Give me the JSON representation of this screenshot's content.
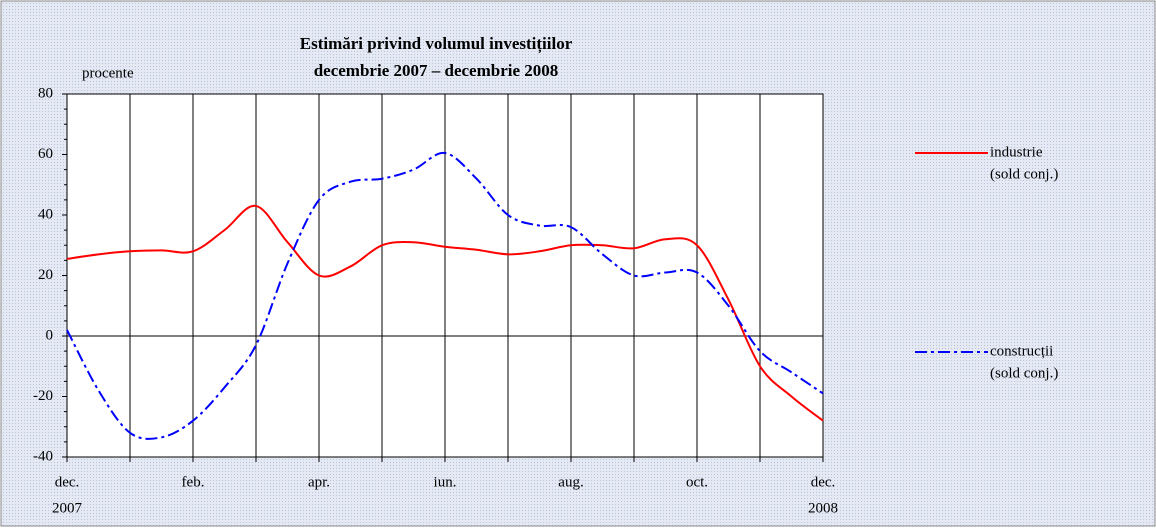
{
  "chart_data": {
    "type": "line",
    "title": "Estimări privind volumul investițiilor",
    "subtitle": "decembrie 2007 – decembrie 2008",
    "ylabel": "procente",
    "x": [
      0,
      0.5,
      1,
      1.5,
      2,
      2.5,
      3,
      3.5,
      4,
      4.5,
      5,
      5.5,
      6,
      6.5,
      7,
      7.5,
      8,
      8.5,
      9,
      9.5,
      10,
      10.5,
      11,
      11.5,
      12
    ],
    "xlim": [
      0,
      12
    ],
    "xticks": [
      {
        "value": 0,
        "label": "dec."
      },
      {
        "value": 1,
        "label": null
      },
      {
        "value": 2,
        "label": "feb."
      },
      {
        "value": 3,
        "label": null
      },
      {
        "value": 4,
        "label": "apr."
      },
      {
        "value": 5,
        "label": null
      },
      {
        "value": 6,
        "label": "iun."
      },
      {
        "value": 7,
        "label": null
      },
      {
        "value": 8,
        "label": "aug."
      },
      {
        "value": 9,
        "label": null
      },
      {
        "value": 10,
        "label": "oct."
      },
      {
        "value": 11,
        "label": null
      },
      {
        "value": 12,
        "label": "dec."
      }
    ],
    "x_sublabels": [
      {
        "value": 0,
        "label": "2007"
      },
      {
        "value": 12,
        "label": "2008"
      }
    ],
    "ylim": [
      -40,
      80
    ],
    "yticks": [
      -40,
      -20,
      0,
      20,
      40,
      60,
      80
    ],
    "grid": "x",
    "legend": "right",
    "series": [
      {
        "name": "industrie",
        "note": "(sold conj.)",
        "color": "#ff0000",
        "dash": "solid",
        "values": [
          25.5,
          27,
          28,
          28.3,
          28,
          35,
          43,
          31,
          20,
          23,
          30,
          31,
          29.5,
          28.5,
          27,
          28,
          30,
          30,
          29,
          32,
          30,
          12,
          -10,
          -20,
          -28
        ]
      },
      {
        "name": "construcții",
        "note": "(sold conj.)",
        "color": "#0000ff",
        "dash": "dashdot",
        "values": [
          2,
          -18,
          -32,
          -33.5,
          -28,
          -17,
          -3,
          24,
          45,
          51,
          52,
          55,
          60.5,
          52,
          40,
          36.5,
          36,
          27,
          20,
          21,
          21,
          10,
          -5,
          -12,
          -19
        ]
      }
    ]
  }
}
